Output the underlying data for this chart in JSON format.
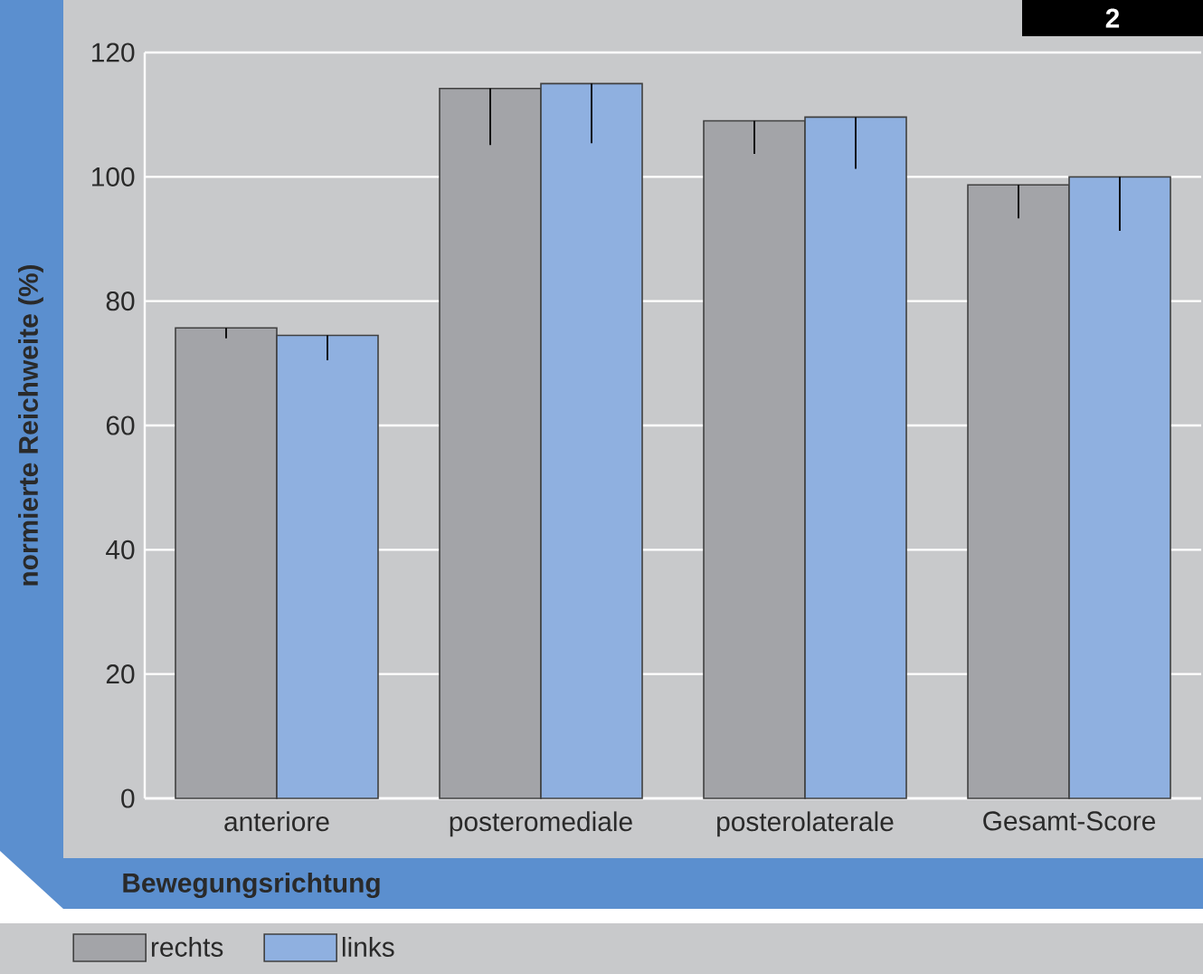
{
  "chart_data": {
    "type": "bar",
    "categories": [
      "anteriore",
      "posteromediale",
      "posterolaterale",
      "Gesamt-Score"
    ],
    "series": [
      {
        "name": "rechts",
        "color": "#a3a4a8",
        "values": [
          75.7,
          114.2,
          109.0,
          98.7
        ],
        "errors": [
          [
            74.0,
            75.7
          ],
          [
            105.1,
            114.2
          ],
          [
            103.7,
            109.0
          ],
          [
            93.3,
            98.7
          ]
        ]
      },
      {
        "name": "links",
        "color": "#8fb0e0",
        "values": [
          74.5,
          115.0,
          109.6,
          100.0
        ],
        "errors": [
          [
            70.5,
            74.5
          ],
          [
            105.4,
            115.0
          ],
          [
            101.3,
            109.6
          ],
          [
            91.3,
            100.0
          ]
        ]
      }
    ],
    "xlabel": "Bewegungsrichtung",
    "ylabel": "normierte Reichweite (%)",
    "ylim": [
      0,
      120
    ],
    "yticks": [
      0,
      20,
      40,
      60,
      80,
      100,
      120
    ],
    "grid": "y",
    "legend": "bottom",
    "annotations": [
      "2"
    ]
  }
}
